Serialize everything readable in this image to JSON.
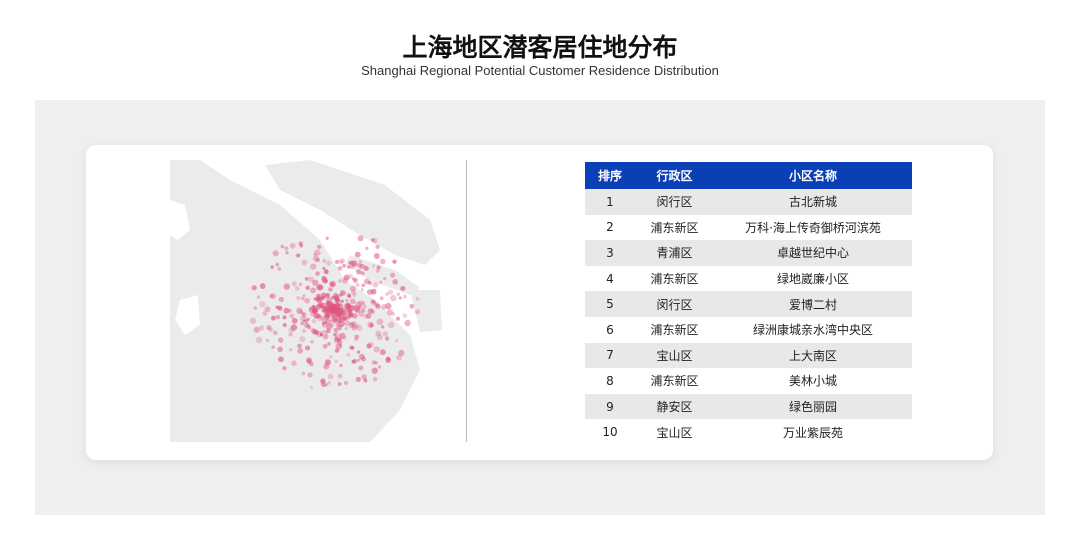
{
  "header": {
    "title": "上海地区潜客居住地分布",
    "subtitle": "Shanghai Regional Potential Customer Residence Distribution"
  },
  "colors": {
    "header_bg": "#0b3fb6",
    "row_alt": "#e8e8e8",
    "dots": "#e0557f",
    "land": "#ebebeb"
  },
  "map": {
    "type": "dot-density map of Shanghai, pink dots concentrated in central urban area"
  },
  "table": {
    "columns": [
      "排序",
      "行政区",
      "小区名称"
    ],
    "rows": [
      {
        "rank": "1",
        "district": "闵行区",
        "name": "古北新城"
      },
      {
        "rank": "2",
        "district": "浦东新区",
        "name": "万科·海上传奇御桥河滨苑"
      },
      {
        "rank": "3",
        "district": "青浦区",
        "name": "卓越世纪中心"
      },
      {
        "rank": "4",
        "district": "浦东新区",
        "name": "绿地崴廉小区"
      },
      {
        "rank": "5",
        "district": "闵行区",
        "name": "爱博二村"
      },
      {
        "rank": "6",
        "district": "浦东新区",
        "name": "绿洲康城亲水湾中央区"
      },
      {
        "rank": "7",
        "district": "宝山区",
        "name": "上大南区"
      },
      {
        "rank": "8",
        "district": "浦东新区",
        "name": "美林小城"
      },
      {
        "rank": "9",
        "district": "静安区",
        "name": "绿色丽园"
      },
      {
        "rank": "10",
        "district": "宝山区",
        "name": "万业紫辰苑"
      }
    ]
  }
}
